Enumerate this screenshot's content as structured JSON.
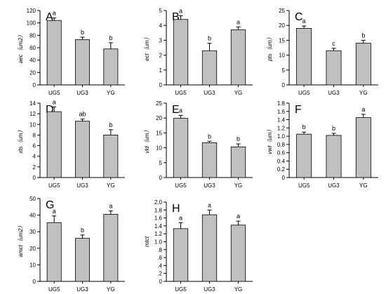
{
  "chart_data": [
    {
      "panel": "A",
      "type": "bar",
      "categories": [
        "UG5",
        "UG3",
        "YG"
      ],
      "values": [
        104,
        73,
        58
      ],
      "errors": [
        4,
        4,
        10
      ],
      "letters": [
        "a",
        "b",
        "b"
      ],
      "ylabel": "aec（um2）",
      "ylim": [
        0,
        120
      ],
      "yticks": [
        0,
        20,
        40,
        60,
        80,
        100,
        120
      ]
    },
    {
      "panel": "B",
      "type": "bar",
      "categories": [
        "UG5",
        "UG3",
        "YG"
      ],
      "values": [
        4.4,
        2.3,
        3.7
      ],
      "errors": [
        0.25,
        0.5,
        0.2
      ],
      "letters": [
        "a",
        "b",
        "a"
      ],
      "ylabel": "ect（um）",
      "ylim": [
        0,
        5
      ],
      "yticks": [
        0,
        1,
        2,
        3,
        4,
        5
      ]
    },
    {
      "panel": "C",
      "type": "bar",
      "categories": [
        "UG5",
        "UG3",
        "YG"
      ],
      "values": [
        19,
        11.5,
        14
      ],
      "errors": [
        0.8,
        0.8,
        1
      ],
      "letters": [
        "a",
        "c",
        "b"
      ],
      "ylabel": "pts（um）",
      "ylim": [
        0,
        25
      ],
      "yticks": [
        0,
        5,
        10,
        15,
        20,
        25
      ]
    },
    {
      "panel": "D",
      "type": "bar",
      "categories": [
        "UG5",
        "UG3",
        "YG"
      ],
      "values": [
        12.4,
        10.6,
        8
      ],
      "errors": [
        0.9,
        0.4,
        1
      ],
      "letters": [
        "a",
        "ab",
        "b"
      ],
      "ylabel": "xts（um）",
      "ylim": [
        0,
        14
      ],
      "yticks": [
        0,
        2,
        4,
        6,
        8,
        10,
        12,
        14
      ]
    },
    {
      "panel": "E",
      "type": "bar",
      "categories": [
        "UG5",
        "UG3",
        "YG"
      ],
      "values": [
        19.9,
        11.7,
        10.3
      ],
      "errors": [
        1,
        0.5,
        1
      ],
      "letters": [
        "a",
        "b",
        "b"
      ],
      "ylabel": "vld（um）",
      "ylim": [
        0,
        25
      ],
      "yticks": [
        0,
        5,
        10,
        15,
        20,
        25
      ]
    },
    {
      "panel": "F",
      "type": "bar",
      "categories": [
        "UG5",
        "UG3",
        "YG"
      ],
      "values": [
        1.05,
        1.02,
        1.45
      ],
      "errors": [
        0.05,
        0.05,
        0.08
      ],
      "letters": [
        "b",
        "b",
        "a"
      ],
      "ylabel": "vwt（um）",
      "ylim": [
        0,
        1.8
      ],
      "yticks": [
        0,
        0.2,
        0.4,
        0.6,
        0.8,
        1.0,
        1.2,
        1.4,
        1.6,
        1.8
      ],
      "tick_decimals": 1
    },
    {
      "panel": "G",
      "type": "bar",
      "categories": [
        "UG5",
        "UG3",
        "YG"
      ],
      "values": [
        35.5,
        26,
        40.5
      ],
      "errors": [
        4,
        2,
        2
      ],
      "letters": [
        "a",
        "b",
        "a"
      ],
      "ylabel": "amct（um2）",
      "ylim": [
        0,
        50
      ],
      "yticks": [
        0,
        10,
        20,
        30,
        40,
        50
      ]
    },
    {
      "panel": "H",
      "type": "bar",
      "categories": [
        "UG5",
        "UG3",
        "YG"
      ],
      "values": [
        1.33,
        1.68,
        1.42
      ],
      "errors": [
        0.15,
        0.12,
        0.1
      ],
      "letters": [
        "a",
        "a",
        "a"
      ],
      "ylabel": "mtct",
      "ylim": [
        0,
        2.0
      ],
      "yticks": [
        0,
        0.2,
        0.4,
        0.6,
        0.8,
        1.0,
        1.2,
        1.4,
        1.6,
        1.8,
        2.0
      ],
      "tick_labels": [
        "0",
        ".2",
        ".4",
        ".6",
        ".8",
        "1.0",
        "1.2",
        "1.4",
        "1.6",
        "1.8",
        "2.0"
      ]
    }
  ]
}
